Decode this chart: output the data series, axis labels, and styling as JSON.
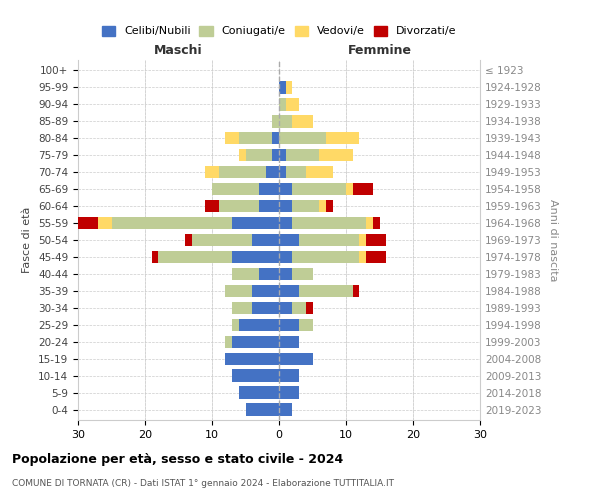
{
  "age_groups": [
    "0-4",
    "5-9",
    "10-14",
    "15-19",
    "20-24",
    "25-29",
    "30-34",
    "35-39",
    "40-44",
    "45-49",
    "50-54",
    "55-59",
    "60-64",
    "65-69",
    "70-74",
    "75-79",
    "80-84",
    "85-89",
    "90-94",
    "95-99",
    "100+"
  ],
  "birth_years": [
    "2019-2023",
    "2014-2018",
    "2009-2013",
    "2004-2008",
    "1999-2003",
    "1994-1998",
    "1989-1993",
    "1984-1988",
    "1979-1983",
    "1974-1978",
    "1969-1973",
    "1964-1968",
    "1959-1963",
    "1954-1958",
    "1949-1953",
    "1944-1948",
    "1939-1943",
    "1934-1938",
    "1929-1933",
    "1924-1928",
    "≤ 1923"
  ],
  "colors": {
    "celibe": "#4472C4",
    "coniugato": "#BFCD96",
    "vedovo": "#FFD966",
    "divorziato": "#C00000"
  },
  "maschi": {
    "celibe": [
      5,
      6,
      7,
      8,
      7,
      6,
      4,
      4,
      3,
      7,
      4,
      7,
      3,
      3,
      2,
      1,
      1,
      0,
      0,
      0,
      0
    ],
    "coniugato": [
      0,
      0,
      0,
      0,
      1,
      1,
      3,
      4,
      4,
      11,
      9,
      18,
      6,
      7,
      7,
      4,
      5,
      1,
      0,
      0,
      0
    ],
    "vedovo": [
      0,
      0,
      0,
      0,
      0,
      0,
      0,
      0,
      0,
      0,
      0,
      2,
      0,
      0,
      2,
      1,
      2,
      0,
      0,
      0,
      0
    ],
    "divorziato": [
      0,
      0,
      0,
      0,
      0,
      0,
      0,
      0,
      0,
      1,
      1,
      3,
      2,
      0,
      0,
      0,
      0,
      0,
      0,
      0,
      0
    ]
  },
  "femmine": {
    "nubile": [
      2,
      3,
      3,
      5,
      3,
      3,
      2,
      3,
      2,
      2,
      3,
      2,
      2,
      2,
      1,
      1,
      0,
      0,
      0,
      1,
      0
    ],
    "coniugata": [
      0,
      0,
      0,
      0,
      0,
      2,
      2,
      8,
      3,
      10,
      9,
      11,
      4,
      8,
      3,
      5,
      7,
      2,
      1,
      0,
      0
    ],
    "vedova": [
      0,
      0,
      0,
      0,
      0,
      0,
      0,
      0,
      0,
      1,
      1,
      1,
      1,
      1,
      4,
      5,
      5,
      3,
      2,
      1,
      0
    ],
    "divorziata": [
      0,
      0,
      0,
      0,
      0,
      0,
      1,
      1,
      0,
      3,
      3,
      1,
      1,
      3,
      0,
      0,
      0,
      0,
      0,
      0,
      0
    ]
  },
  "xlim": 30,
  "title": "Popolazione per età, sesso e stato civile - 2024",
  "subtitle": "COMUNE DI TORNATA (CR) - Dati ISTAT 1° gennaio 2024 - Elaborazione TUTTITALIA.IT",
  "ylabel_left": "Fasce di età",
  "ylabel_right": "Anni di nascita",
  "xlabel_maschi": "Maschi",
  "xlabel_femmine": "Femmine",
  "legend_labels": [
    "Celibi/Nubili",
    "Coniugati/e",
    "Vedovi/e",
    "Divorzati/e"
  ],
  "bg_color": "#FFFFFF",
  "grid_color": "#CCCCCC",
  "bar_height": 0.75
}
